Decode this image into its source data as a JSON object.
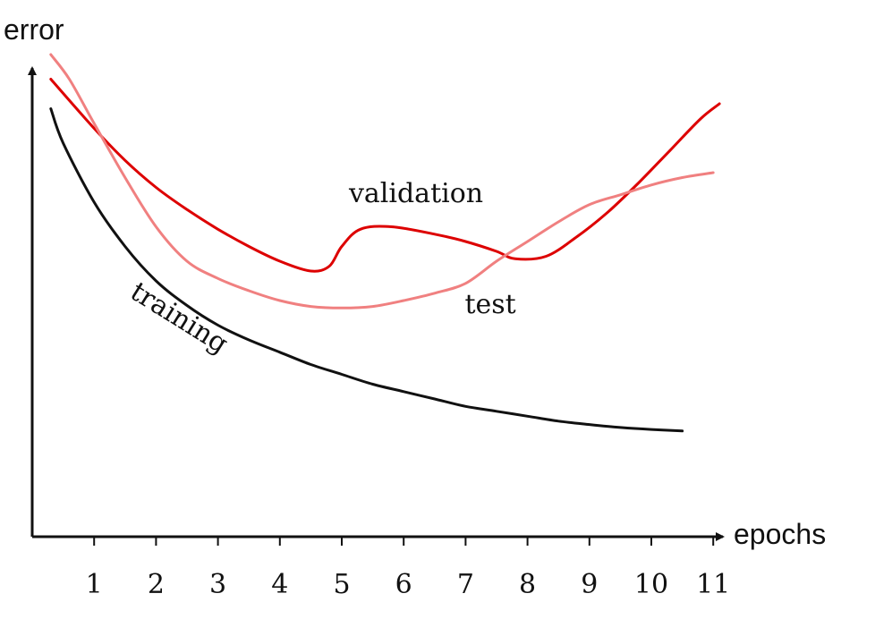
{
  "chart_data": {
    "type": "line",
    "xlabel": "epochs",
    "ylabel": "error",
    "x_ticks": [
      1,
      2,
      3,
      4,
      5,
      6,
      7,
      8,
      9,
      10,
      11
    ],
    "xlim": [
      0,
      11.5
    ],
    "ylim": [
      0,
      1
    ],
    "grid": false,
    "legend": "none (curves labeled inline)",
    "series": [
      {
        "name": "training",
        "color": "#111111",
        "points": [
          [
            0.3,
            0.87
          ],
          [
            0.5,
            0.8
          ],
          [
            1,
            0.68
          ],
          [
            1.5,
            0.59
          ],
          [
            2,
            0.52
          ],
          [
            2.5,
            0.47
          ],
          [
            3,
            0.43
          ],
          [
            3.5,
            0.4
          ],
          [
            4,
            0.375
          ],
          [
            4.5,
            0.35
          ],
          [
            5,
            0.33
          ],
          [
            5.5,
            0.31
          ],
          [
            6,
            0.295
          ],
          [
            6.5,
            0.28
          ],
          [
            7,
            0.265
          ],
          [
            7.5,
            0.255
          ],
          [
            8,
            0.245
          ],
          [
            8.5,
            0.235
          ],
          [
            9,
            0.228
          ],
          [
            9.5,
            0.222
          ],
          [
            10,
            0.218
          ],
          [
            10.5,
            0.215
          ]
        ]
      },
      {
        "name": "validation",
        "color": "#dd0000",
        "points": [
          [
            0.3,
            0.93
          ],
          [
            1,
            0.83
          ],
          [
            1.5,
            0.765
          ],
          [
            2,
            0.71
          ],
          [
            2.5,
            0.665
          ],
          [
            3,
            0.625
          ],
          [
            3.5,
            0.59
          ],
          [
            4,
            0.56
          ],
          [
            4.5,
            0.54
          ],
          [
            4.8,
            0.55
          ],
          [
            5,
            0.59
          ],
          [
            5.3,
            0.625
          ],
          [
            5.8,
            0.63
          ],
          [
            6.5,
            0.615
          ],
          [
            7,
            0.6
          ],
          [
            7.5,
            0.58
          ],
          [
            7.8,
            0.565
          ],
          [
            8.3,
            0.57
          ],
          [
            8.8,
            0.61
          ],
          [
            9.3,
            0.66
          ],
          [
            9.8,
            0.72
          ],
          [
            10.3,
            0.785
          ],
          [
            10.8,
            0.85
          ],
          [
            11.1,
            0.88
          ]
        ]
      },
      {
        "name": "test",
        "color": "#f08080",
        "points": [
          [
            0.3,
            0.98
          ],
          [
            0.6,
            0.93
          ],
          [
            1,
            0.84
          ],
          [
            1.5,
            0.73
          ],
          [
            2,
            0.63
          ],
          [
            2.5,
            0.56
          ],
          [
            3,
            0.525
          ],
          [
            3.5,
            0.5
          ],
          [
            4,
            0.48
          ],
          [
            4.5,
            0.468
          ],
          [
            5,
            0.465
          ],
          [
            5.5,
            0.468
          ],
          [
            6,
            0.48
          ],
          [
            6.5,
            0.495
          ],
          [
            7,
            0.515
          ],
          [
            7.5,
            0.56
          ],
          [
            8,
            0.6
          ],
          [
            8.5,
            0.64
          ],
          [
            9,
            0.675
          ],
          [
            9.5,
            0.695
          ],
          [
            10,
            0.715
          ],
          [
            10.5,
            0.73
          ],
          [
            11,
            0.74
          ]
        ]
      }
    ],
    "annotations": [
      {
        "text": "validation",
        "x": 6.2,
        "y": 0.68,
        "rotate": 0
      },
      {
        "text": "test",
        "x": 7.4,
        "y": 0.455,
        "rotate": 0
      },
      {
        "text": "training",
        "x": 2.3,
        "y": 0.43,
        "rotate": 32
      }
    ]
  }
}
